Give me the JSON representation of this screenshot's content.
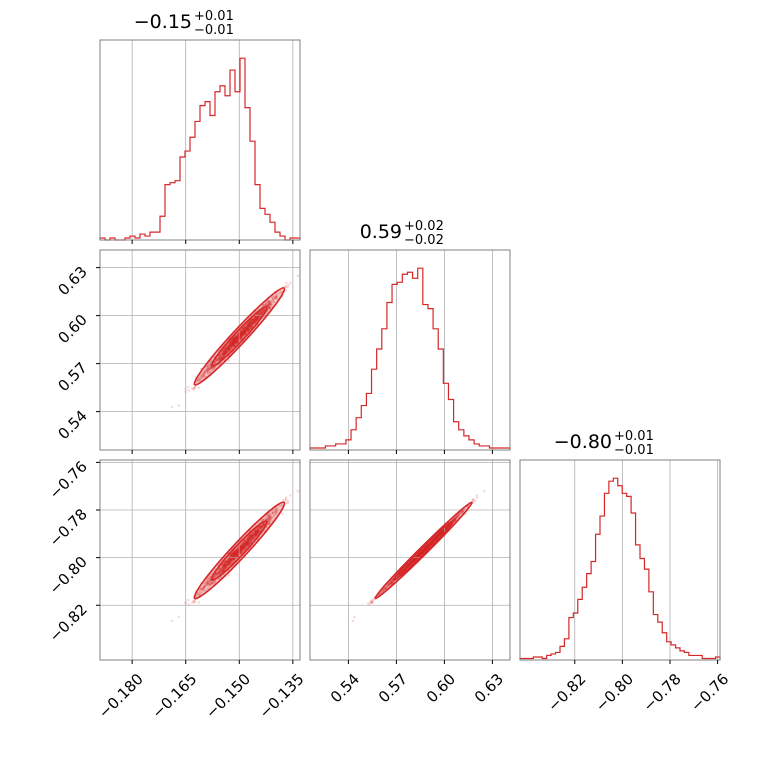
{
  "chart_data": {
    "type": "corner",
    "color": "#d62728",
    "titles": [
      {
        "value": "−0.15",
        "plus": "+0.01",
        "minus": "−0.01"
      },
      {
        "value": "0.59",
        "plus": "+0.02",
        "minus": "−0.02"
      },
      {
        "value": "−0.80",
        "plus": "+0.01",
        "minus": "−0.01"
      }
    ],
    "params": [
      {
        "range": [
          -0.189,
          -0.133
        ],
        "ticks": [
          -0.18,
          -0.165,
          -0.15,
          -0.135
        ],
        "tick_labels": [
          "−0.180",
          "−0.165",
          "−0.150",
          "−0.135"
        ],
        "median": -0.15,
        "sigma": 0.005
      },
      {
        "range": [
          0.516,
          0.641
        ],
        "ticks": [
          0.54,
          0.57,
          0.6,
          0.63
        ],
        "tick_labels": [
          "0.54",
          "0.57",
          "0.60",
          "0.63"
        ],
        "median": 0.587,
        "sigma": 0.012
      },
      {
        "range": [
          -0.843,
          -0.759
        ],
        "ticks": [
          -0.82,
          -0.8,
          -0.78,
          -0.76
        ],
        "tick_labels": [
          "−0.82",
          "−0.80",
          "−0.78",
          "−0.76"
        ],
        "median": -0.797,
        "sigma": 0.008
      }
    ],
    "histograms": [
      [
        1,
        0,
        1,
        0,
        0,
        1,
        2,
        1,
        3,
        2,
        4,
        4,
        12,
        28,
        29,
        30,
        42,
        45,
        52,
        60,
        68,
        70,
        63,
        75,
        78,
        73,
        86,
        75,
        92,
        67,
        50,
        28,
        16,
        13,
        9,
        4,
        2,
        0,
        1,
        1
      ],
      [
        1,
        1,
        1,
        2,
        2,
        3,
        3,
        5,
        10,
        16,
        22,
        28,
        40,
        50,
        60,
        73,
        82,
        83,
        87,
        88,
        85,
        90,
        72,
        70,
        60,
        50,
        33,
        25,
        14,
        10,
        7,
        5,
        3,
        2,
        2,
        1,
        1,
        1,
        1
      ],
      [
        1,
        1,
        1,
        2,
        2,
        1,
        3,
        4,
        5,
        9,
        14,
        28,
        31,
        40,
        48,
        57,
        65,
        83,
        95,
        110,
        118,
        120,
        115,
        110,
        108,
        97,
        76,
        67,
        60,
        45,
        30,
        25,
        18,
        12,
        10,
        8,
        6,
        5,
        3,
        3,
        3,
        1,
        1,
        1,
        2
      ]
    ],
    "grid": true
  }
}
